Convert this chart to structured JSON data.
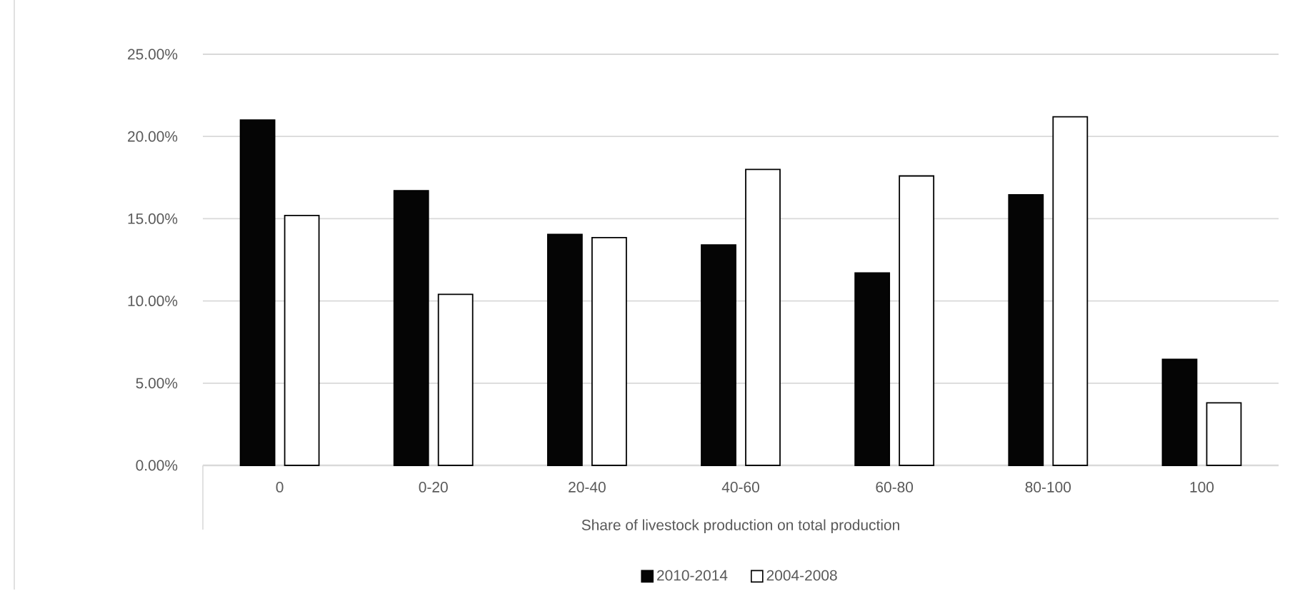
{
  "chart_data": {
    "type": "bar",
    "xlabel": "Share of livestock production on total production",
    "categories": [
      "0",
      "0-20",
      "20-40",
      "40-60",
      "60-80",
      "80-100",
      "100"
    ],
    "series": [
      {
        "name": "2010-2014",
        "color": "#050505",
        "values": [
          21.0,
          16.7,
          14.05,
          13.4,
          11.7,
          16.45,
          6.45
        ]
      },
      {
        "name": "2004-2008",
        "color": "#ffffff",
        "values": [
          15.2,
          10.4,
          13.85,
          18.0,
          17.6,
          21.2,
          3.8
        ]
      }
    ],
    "ylim": [
      0,
      25
    ],
    "yticks": [
      {
        "value": 0,
        "label": "0.00%"
      },
      {
        "value": 5,
        "label": "5.00%"
      },
      {
        "value": 10,
        "label": "10.00%"
      },
      {
        "value": 15,
        "label": "15.00%"
      },
      {
        "value": 20,
        "label": "20.00%"
      },
      {
        "value": 25,
        "label": "25.00%"
      }
    ],
    "grid": "y",
    "legend": "bottom"
  }
}
